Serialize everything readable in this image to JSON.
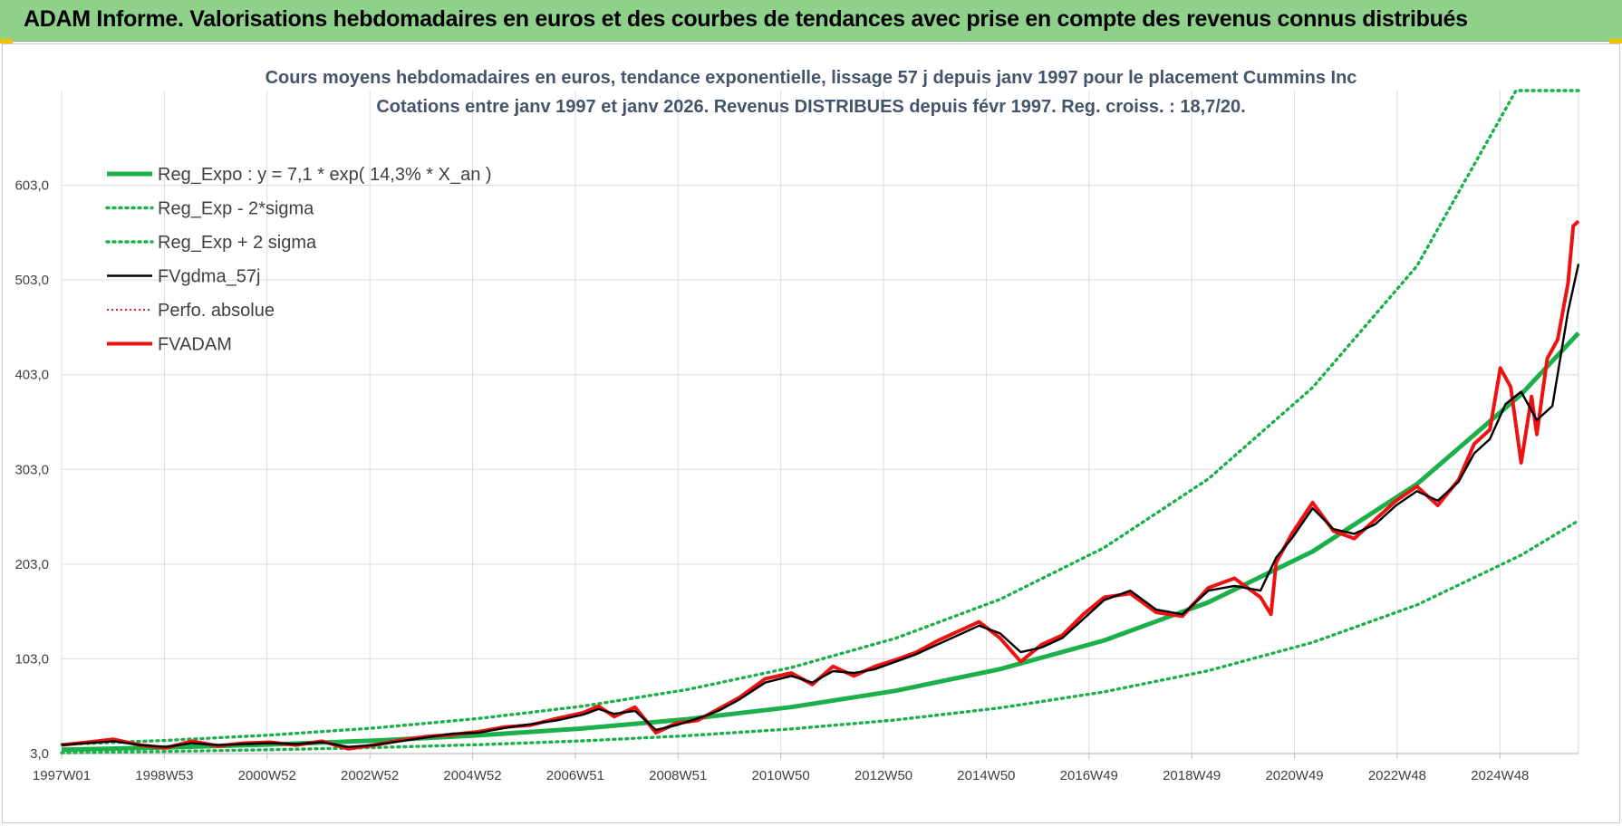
{
  "banner": {
    "title": "ADAM Informe. Valorisations hebdomadaires en euros et des courbes de tendances avec prise en compte des revenus connus distribués"
  },
  "chart_data": {
    "type": "line",
    "title": "Cours moyens hebdomadaires en euros, tendance exponentielle, lissage 57 j depuis janv 1997 pour le placement Cummins Inc",
    "subtitle": "Cotations entre janv 1997 et janv 2026. Revenus DISTRIBUES depuis févr 1997. Reg. croiss. : 18,7/20.",
    "xlabel": "",
    "ylabel": "",
    "x_ticks": [
      "1997W01",
      "1998W53",
      "2000W52",
      "2002W52",
      "2004W52",
      "2006W51",
      "2008W51",
      "2010W50",
      "2012W50",
      "2014W50",
      "2016W49",
      "2018W49",
      "2020W49",
      "2022W48",
      "2024W48"
    ],
    "y_ticks": [
      "3,0",
      "103,0",
      "203,0",
      "303,0",
      "403,0",
      "503,0",
      "603,0"
    ],
    "ylim": [
      3,
      703
    ],
    "xlim": [
      1997.0,
      2026.1
    ],
    "grid": true,
    "legend_position": "top-left",
    "series": [
      {
        "name": "Reg_Expo : y = 7,1 * exp( 14,3% *  X_an )",
        "style": "solid-thick",
        "color": "#1bb04a",
        "x": [
          1997,
          1999,
          2001,
          2003,
          2005,
          2007,
          2009,
          2011,
          2013,
          2015,
          2017,
          2019,
          2021,
          2023,
          2025,
          2026.1
        ],
        "values": [
          7.1,
          9.4,
          12.6,
          16.7,
          22.2,
          29.5,
          39.2,
          52.1,
          69.3,
          92.1,
          122.4,
          162.7,
          216.3,
          287.5,
          382.2,
          447
        ]
      },
      {
        "name": "Reg_Exp - 2*sigma",
        "style": "dotted",
        "color": "#1bb04a",
        "x": [
          1997,
          1999,
          2001,
          2003,
          2005,
          2007,
          2009,
          2011,
          2013,
          2015,
          2017,
          2019,
          2021,
          2023,
          2025,
          2026.1
        ],
        "values": [
          3.9,
          5.2,
          7.0,
          9.3,
          12.4,
          16.4,
          21.8,
          29.0,
          38.5,
          51.2,
          68.1,
          90.5,
          120.3,
          159.9,
          212.5,
          249
        ]
      },
      {
        "name": "Reg_Exp + 2 sigma",
        "style": "dotted",
        "color": "#1bb04a",
        "x": [
          1997,
          1999,
          2001,
          2003,
          2005,
          2007,
          2009,
          2011,
          2013,
          2015,
          2017,
          2019,
          2021,
          2023,
          2024.9,
          2026.1
        ],
        "values": [
          12.7,
          16.9,
          22.5,
          30.0,
          40.0,
          53.0,
          70.5,
          93.8,
          124.7,
          165.8,
          220.4,
          293.0,
          389.5,
          517.8,
          703,
          703
        ]
      },
      {
        "name": "FVgdma_57j",
        "style": "solid",
        "color": "#000000",
        "x": [
          1997,
          1997.5,
          1998,
          1998.5,
          1999,
          1999.5,
          2000,
          2000.5,
          2001,
          2001.5,
          2002,
          2002.5,
          2003,
          2003.5,
          2004,
          2004.5,
          2005,
          2005.5,
          2006,
          2006.5,
          2007,
          2007.3,
          2007.6,
          2008,
          2008.4,
          2008.8,
          2009.2,
          2009.6,
          2010,
          2010.5,
          2011,
          2011.4,
          2011.8,
          2012.2,
          2012.6,
          2013,
          2013.4,
          2013.8,
          2014.2,
          2014.6,
          2015,
          2015.4,
          2015.8,
          2016.2,
          2016.6,
          2017,
          2017.5,
          2018,
          2018.5,
          2019,
          2019.5,
          2020,
          2020.3,
          2020.6,
          2021,
          2021.4,
          2021.8,
          2022.2,
          2022.6,
          2023,
          2023.4,
          2023.8,
          2024.1,
          2024.4,
          2024.7,
          2025,
          2025.3,
          2025.6,
          2025.9,
          2026.1
        ],
        "values": [
          12,
          14,
          16,
          12,
          10,
          14,
          12,
          13,
          14,
          13,
          15,
          10,
          12,
          16,
          20,
          24,
          25,
          30,
          34,
          38,
          44,
          50,
          45,
          48,
          28,
          33,
          40,
          48,
          60,
          78,
          85,
          78,
          90,
          88,
          92,
          100,
          108,
          118,
          128,
          138,
          130,
          110,
          115,
          125,
          145,
          165,
          175,
          155,
          150,
          175,
          180,
          175,
          210,
          230,
          262,
          240,
          235,
          245,
          265,
          280,
          270,
          290,
          320,
          335,
          372,
          385,
          355,
          370,
          470,
          520
        ]
      },
      {
        "name": "Perfo. absolue",
        "style": "dotted-thin",
        "color": "#e32222",
        "x": [],
        "values": []
      },
      {
        "name": "FVADAM",
        "style": "solid-thick",
        "color": "#ee1111",
        "x": [
          1997,
          1997.5,
          1998,
          1998.5,
          1999,
          1999.5,
          2000,
          2000.5,
          2001,
          2001.5,
          2002,
          2002.5,
          2003,
          2003.5,
          2004,
          2004.5,
          2005,
          2005.5,
          2006,
          2006.5,
          2007,
          2007.3,
          2007.6,
          2008,
          2008.4,
          2008.8,
          2009.2,
          2009.6,
          2010,
          2010.5,
          2011,
          2011.4,
          2011.8,
          2012.2,
          2012.6,
          2013,
          2013.4,
          2013.8,
          2014.2,
          2014.6,
          2015,
          2015.4,
          2015.8,
          2016.2,
          2016.6,
          2017,
          2017.5,
          2018,
          2018.5,
          2019,
          2019.5,
          2020,
          2020.2,
          2020.3,
          2020.6,
          2021,
          2021.4,
          2021.8,
          2022.2,
          2022.6,
          2023,
          2023.4,
          2023.8,
          2024.1,
          2024.4,
          2024.6,
          2024.8,
          2025,
          2025.2,
          2025.3,
          2025.5,
          2025.7,
          2025.9,
          2026.0,
          2026.1
        ],
        "values": [
          12,
          15,
          18,
          12,
          9,
          16,
          11,
          14,
          15,
          12,
          16,
          8,
          12,
          17,
          21,
          23,
          26,
          31,
          33,
          40,
          46,
          53,
          42,
          52,
          25,
          35,
          38,
          50,
          62,
          82,
          88,
          76,
          95,
          85,
          95,
          102,
          110,
          122,
          132,
          142,
          125,
          100,
          118,
          128,
          150,
          168,
          172,
          152,
          148,
          178,
          188,
          168,
          150,
          205,
          235,
          268,
          238,
          230,
          250,
          270,
          285,
          265,
          292,
          330,
          345,
          410,
          390,
          310,
          380,
          340,
          420,
          440,
          500,
          560,
          565
        ]
      }
    ]
  }
}
